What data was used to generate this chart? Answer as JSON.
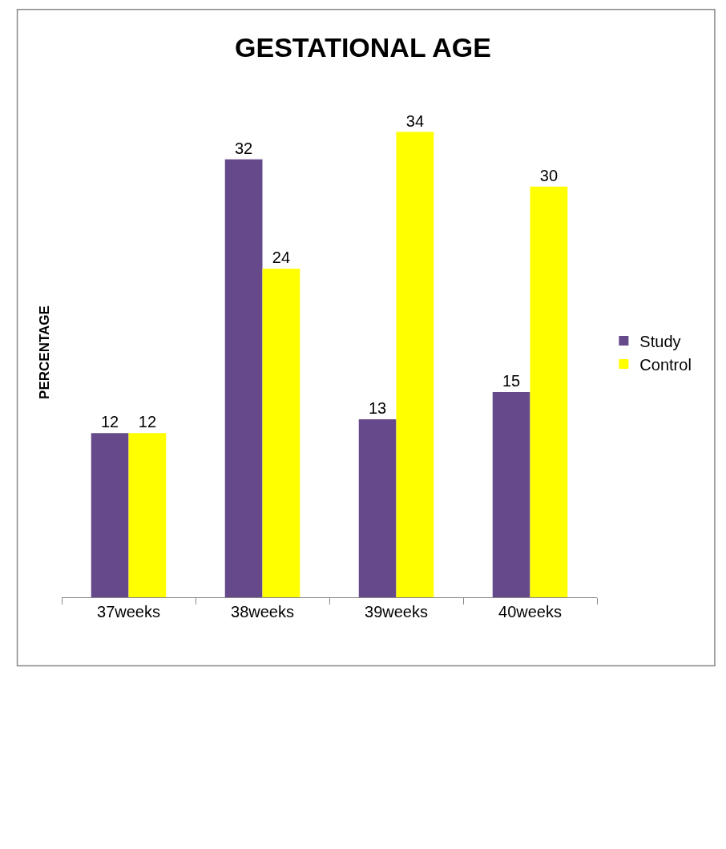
{
  "chart_data": {
    "type": "bar",
    "title": "GESTATIONAL AGE",
    "ylabel": "PERCENTAGE",
    "categories": [
      "37weeks",
      "38weeks",
      "39weeks",
      "40weeks"
    ],
    "series": [
      {
        "name": "Study",
        "color": "#65498a",
        "values": [
          12,
          32,
          13,
          15
        ]
      },
      {
        "name": "Control",
        "color": "#ffff00",
        "values": [
          12,
          24,
          34,
          30
        ]
      }
    ],
    "data_labels": true,
    "legend": "right",
    "tick_labels": "x"
  }
}
